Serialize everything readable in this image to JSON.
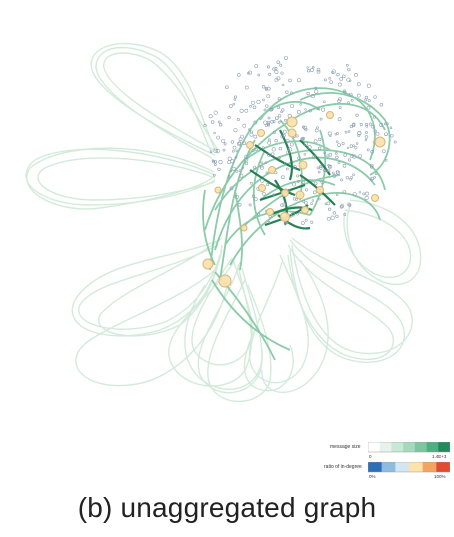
{
  "caption": "(b) unaggregated graph",
  "legend": {
    "size_label": "message size",
    "size_min": "0",
    "size_max": "1.4E+3",
    "ratio_label": "ratio of in-degree",
    "ratio_min": "0%",
    "ratio_max": "100%",
    "size_colors": [
      "#ffffff",
      "#e6f3ec",
      "#c8e8d6",
      "#a6d9bc",
      "#7fc6a0",
      "#4fae82",
      "#1f8a5c"
    ],
    "ratio_colors": [
      "#2f6fb6",
      "#8fbbe0",
      "#d4e6f2",
      "#fde3a7",
      "#f4a460",
      "#e34a33"
    ]
  },
  "colors": {
    "edge_faint": "#c5e4cf",
    "edge_mid": "#7fc6a0",
    "edge_dark": "#1f7a4c",
    "node_fill": "#f8e3b0",
    "node_stroke": "#d9b36a",
    "dot": "#8da0b3"
  }
}
